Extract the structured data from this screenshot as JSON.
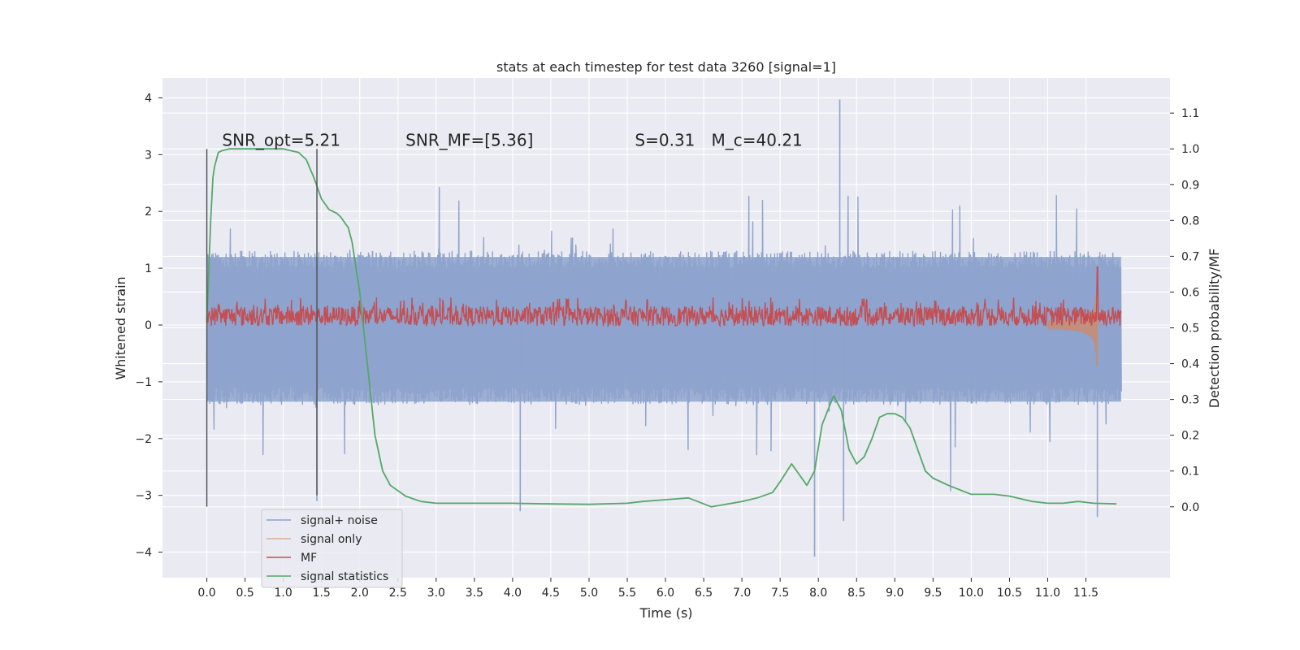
{
  "chart_data": {
    "type": "line",
    "title": "stats at each timestep for test data 3260 [signal=1]",
    "xlabel": "Time (s)",
    "ylabel": "Whitened strain",
    "y2label": "Detection probability/MF",
    "xlim": [
      -0.58,
      12.6
    ],
    "ylim": [
      -4.45,
      4.35
    ],
    "y2lim": [
      -0.198,
      1.198
    ],
    "x_ticks": [
      0.0,
      0.5,
      1.0,
      1.5,
      2.0,
      2.5,
      3.0,
      3.5,
      4.0,
      4.5,
      5.0,
      5.5,
      6.0,
      6.5,
      7.0,
      7.5,
      8.0,
      8.5,
      9.0,
      9.5,
      10.0,
      10.5,
      11.0,
      11.5
    ],
    "x_tick_labels": [
      "0.0",
      "0.5",
      "1.0",
      "1.5",
      "2.0",
      "2.5",
      "3.0",
      "3.5",
      "4.0",
      "4.5",
      "5.0",
      "5.5",
      "6.0",
      "6.5",
      "7.0",
      "7.5",
      "8.0",
      "8.5",
      "9.0",
      "9.5",
      "10.0",
      "10.5",
      "11.0",
      "11.5"
    ],
    "y_ticks": [
      4,
      3,
      2,
      1,
      0,
      -1,
      -2,
      -3,
      -4
    ],
    "y_tick_labels": [
      "4",
      "3",
      "2",
      "1",
      "0",
      "−1",
      "−2",
      "−3",
      "−4"
    ],
    "y2_ticks": [
      1.1,
      1.0,
      0.9,
      0.8,
      0.7,
      0.6,
      0.5,
      0.4,
      0.3,
      0.2,
      0.1,
      0.0
    ],
    "y2_tick_labels": [
      "1.1",
      "1.0",
      "0.9",
      "0.8",
      "0.7",
      "0.6",
      "0.5",
      "0.4",
      "0.3",
      "0.2",
      "0.1",
      "0.0"
    ],
    "grid": true,
    "legend_position": "lower-left",
    "colors": {
      "background": "#eaeaf2",
      "signal_noise": "#8ea3cc",
      "signal_only": "#dd8452",
      "mf": "#c44e52",
      "stats": "#55a868",
      "vline": "#4d4d4d"
    },
    "series": [
      {
        "name": "signal+ noise",
        "axis": "left",
        "style": "dense_noise",
        "x_range": [
          0.0,
          11.96
        ],
        "typical_envelope": [
          -1.4,
          1.3
        ],
        "peak_max": 3.97,
        "peak_min": -4.08
      },
      {
        "name": "signal only",
        "axis": "left",
        "style": "chirp",
        "x_range": [
          11.0,
          11.7
        ],
        "peak_max": 1.1,
        "peak_min": -1.2,
        "merger_time": 11.65
      },
      {
        "name": "MF",
        "axis": "right",
        "style": "dense_noise",
        "x_range": [
          0.0,
          11.96
        ],
        "typical_range": [
          0.505,
          0.56
        ],
        "peak_max": 0.585,
        "spike_time": 11.65,
        "spike_value": 0.67
      },
      {
        "name": "signal statistics",
        "axis": "right",
        "x": [
          0.0,
          0.05,
          0.08,
          0.1,
          0.15,
          0.2,
          0.3,
          0.5,
          0.8,
          1.0,
          1.2,
          1.3,
          1.4,
          1.45,
          1.5,
          1.6,
          1.7,
          1.75,
          1.85,
          1.9,
          2.0,
          2.05,
          2.1,
          2.2,
          2.3,
          2.4,
          2.6,
          2.8,
          3.0,
          3.5,
          4.0,
          4.5,
          5.0,
          5.5,
          5.7,
          6.0,
          6.3,
          6.6,
          7.0,
          7.2,
          7.4,
          7.5,
          7.65,
          7.75,
          7.85,
          7.95,
          8.05,
          8.2,
          8.3,
          8.4,
          8.5,
          8.6,
          8.7,
          8.8,
          8.9,
          9.0,
          9.1,
          9.2,
          9.3,
          9.4,
          9.5,
          9.7,
          10.0,
          10.3,
          10.5,
          10.8,
          11.0,
          11.2,
          11.4,
          11.6,
          11.9
        ],
        "y": [
          0.52,
          0.8,
          0.92,
          0.95,
          0.99,
          0.995,
          1.0,
          1.0,
          1.0,
          1.0,
          0.99,
          0.97,
          0.92,
          0.89,
          0.86,
          0.83,
          0.82,
          0.81,
          0.78,
          0.74,
          0.6,
          0.5,
          0.4,
          0.2,
          0.1,
          0.06,
          0.03,
          0.015,
          0.01,
          0.01,
          0.01,
          0.008,
          0.007,
          0.01,
          0.015,
          0.02,
          0.025,
          0.0,
          0.015,
          0.025,
          0.04,
          0.07,
          0.12,
          0.09,
          0.06,
          0.1,
          0.23,
          0.31,
          0.27,
          0.16,
          0.12,
          0.14,
          0.19,
          0.25,
          0.26,
          0.26,
          0.25,
          0.22,
          0.16,
          0.1,
          0.08,
          0.06,
          0.035,
          0.035,
          0.03,
          0.015,
          0.01,
          0.01,
          0.015,
          0.01,
          0.008
        ]
      }
    ],
    "vertical_lines": [
      {
        "x": 0.0,
        "y_from": -3.2,
        "y_to": 3.1
      },
      {
        "x": 1.44,
        "y_from": -3.0,
        "y_to": 3.1
      }
    ],
    "annotations": [
      {
        "text": "SNR_opt=5.21",
        "x": 0.2,
        "y": 3.1
      },
      {
        "text": "SNR_MF=[5.36]",
        "x": 2.6,
        "y": 3.1
      },
      {
        "text": "S=0.31",
        "x": 5.6,
        "y": 3.1
      },
      {
        "text": "M_c=40.21",
        "x": 6.6,
        "y": 3.1
      }
    ]
  }
}
